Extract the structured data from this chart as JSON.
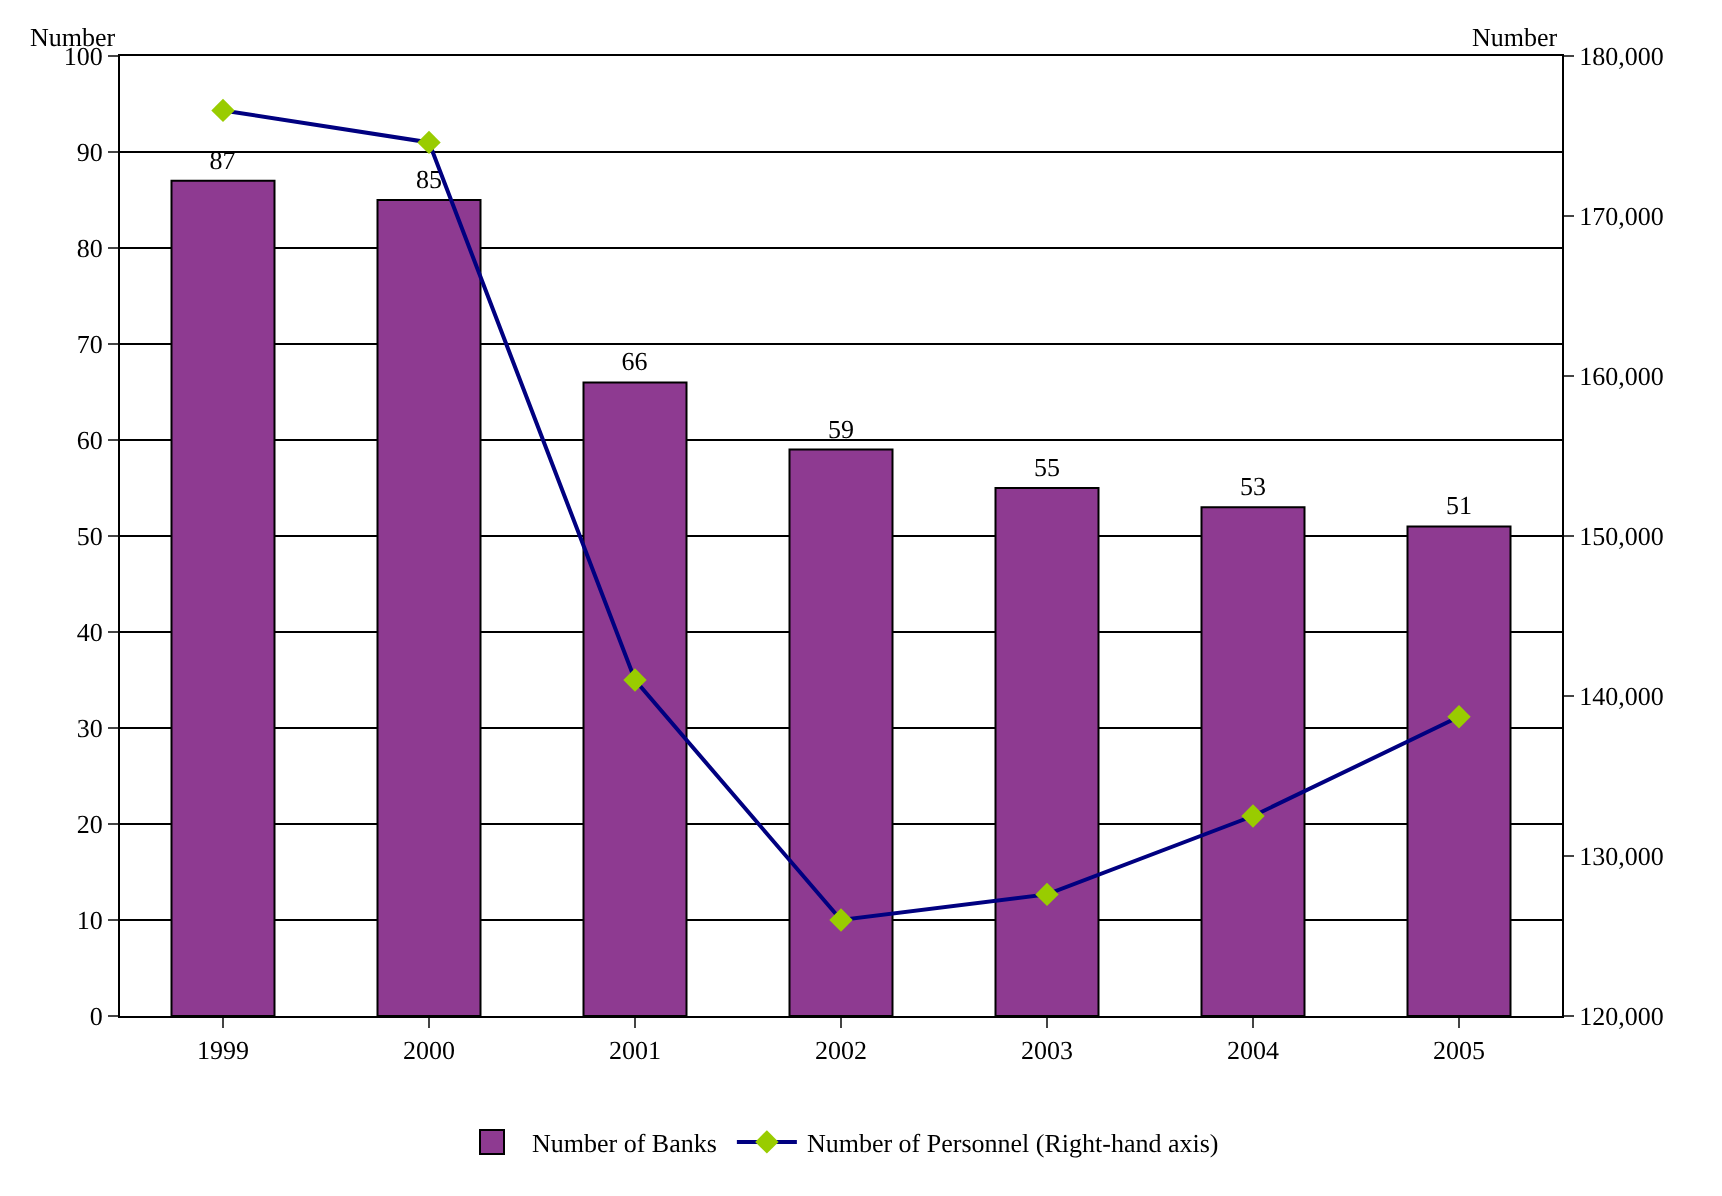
{
  "chart_data": {
    "type": "bar",
    "ylabel": "Number",
    "y2label": "Number",
    "categories": [
      "1999",
      "2000",
      "2001",
      "2002",
      "2003",
      "2004",
      "2005"
    ],
    "series": [
      {
        "name": "Number of Banks",
        "color": "#8e3a91",
        "values": [
          87,
          85,
          66,
          59,
          55,
          53,
          51
        ],
        "value_labels": [
          "87",
          "85",
          "66",
          "59",
          "55",
          "53",
          "51"
        ]
      },
      {
        "name": "Number of Personnel (Right-hand axis)",
        "type": "line",
        "axis": "y2",
        "color": "#000080",
        "values": [
          176600,
          174600,
          141000,
          126000,
          127600,
          132500,
          138700
        ]
      }
    ],
    "ylim": [
      0,
      100
    ],
    "yticks": [
      0,
      10,
      20,
      30,
      40,
      50,
      60,
      70,
      80,
      90,
      100
    ],
    "y2lim": [
      120000,
      180000
    ],
    "y2ticks": [
      {
        "value": 120000,
        "label": "120,000"
      },
      {
        "value": 130000,
        "label": "130,000"
      },
      {
        "value": 140000,
        "label": "140,000"
      },
      {
        "value": 150000,
        "label": "150,000"
      },
      {
        "value": 160000,
        "label": "160,000"
      },
      {
        "value": 170000,
        "label": "170,000"
      },
      {
        "value": 180000,
        "label": "180,000"
      }
    ],
    "grid": "y",
    "legend": "bottom",
    "marker": "diamond",
    "line_style": "solid"
  }
}
